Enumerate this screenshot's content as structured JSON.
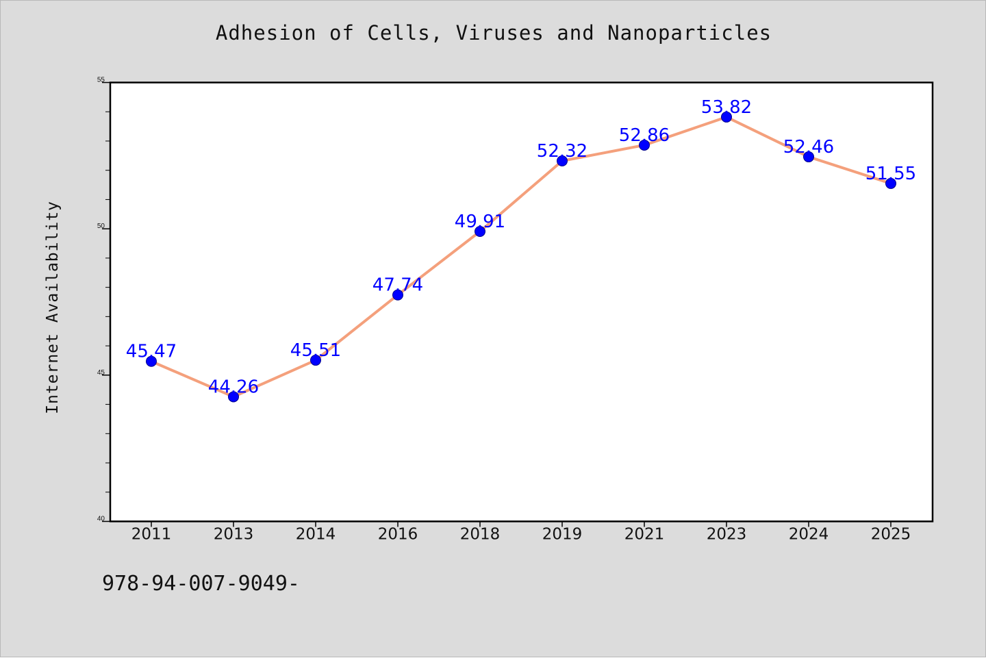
{
  "chart_data": {
    "type": "line",
    "title": "Adhesion of Cells, Viruses and Nanoparticles",
    "xlabel": "",
    "ylabel": "Internet Availability",
    "categories": [
      "2011",
      "2013",
      "2014",
      "2016",
      "2018",
      "2019",
      "2021",
      "2023",
      "2024",
      "2025"
    ],
    "series": [
      {
        "values": [
          45.47,
          44.26,
          45.51,
          47.74,
          49.91,
          52.32,
          52.86,
          53.82,
          52.46,
          51.55
        ]
      }
    ],
    "data_labels": [
      "45.47",
      "44.26",
      "45.51",
      "47.74",
      "49.91",
      "52.32",
      "52.86",
      "53.82",
      "52.46",
      "51.55"
    ],
    "ylim": [
      40,
      55
    ],
    "yticks": [
      40,
      45,
      50,
      55
    ],
    "ytick_labels": [
      "40",
      "45",
      "50",
      "55"
    ],
    "grid": false,
    "legend": "none",
    "colors": {
      "line": "#f4a07c",
      "marker": "#0000ff",
      "data_label": "#0000ff",
      "background": "#dcdcdc",
      "plot_area": "#ffffff"
    }
  },
  "footer": {
    "text": "978-94-007-9049-"
  }
}
